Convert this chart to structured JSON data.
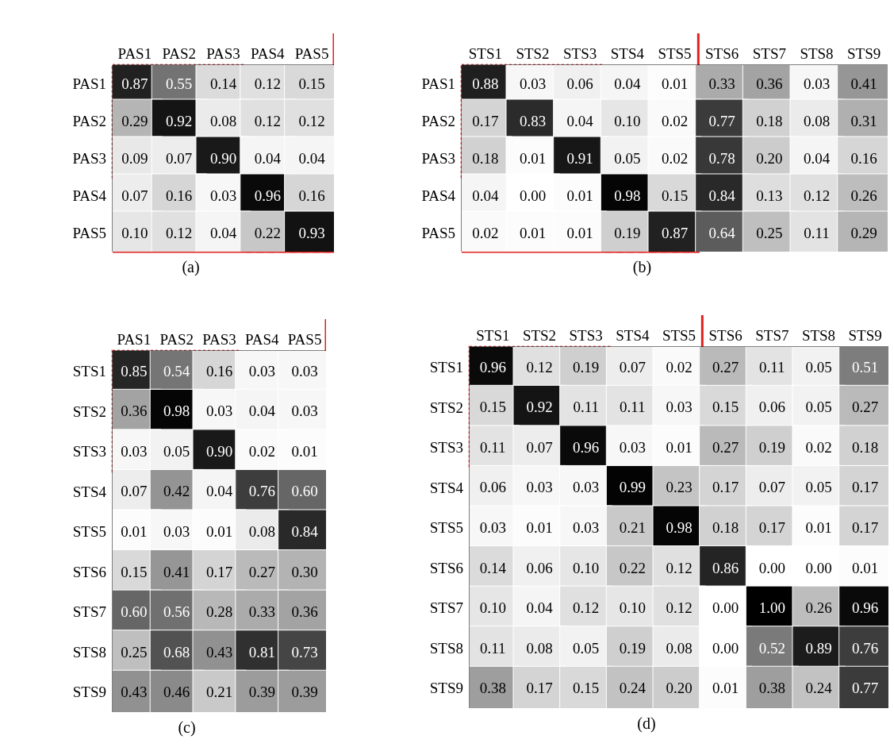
{
  "chart_data": [
    {
      "type": "heatmap",
      "title": "(a)",
      "categories": [
        "PAS1",
        "PAS2",
        "PAS3",
        "PAS4",
        "PAS5"
      ],
      "y_categories": [
        "PAS1",
        "PAS2",
        "PAS3",
        "PAS4",
        "PAS5"
      ],
      "cells": [
        [
          0.87,
          0.55,
          0.14,
          0.12,
          0.15
        ],
        [
          0.29,
          0.92,
          0.08,
          0.12,
          0.12
        ],
        [
          0.09,
          0.07,
          0.9,
          0.04,
          0.04
        ],
        [
          0.07,
          0.16,
          0.03,
          0.96,
          0.16
        ],
        [
          0.1,
          0.12,
          0.04,
          0.22,
          0.93
        ]
      ],
      "cell_labels": [
        [
          "0.87",
          "0.55",
          "0.14",
          "0.12",
          "0.15"
        ],
        [
          "0.29",
          "0.92",
          "0.08",
          "0.12",
          "0.12"
        ],
        [
          "0.09",
          "0.07",
          "0.90",
          "0.04",
          "0.04"
        ],
        [
          "0.07",
          "0.16",
          "0.03",
          "0.96",
          "0.16"
        ],
        [
          "0.10",
          "0.12",
          "0.04",
          "0.22",
          "0.93"
        ]
      ]
    },
    {
      "type": "heatmap",
      "title": "(b)",
      "categories": [
        "STS1",
        "STS2",
        "STS3",
        "STS4",
        "STS5",
        "STS6",
        "STS7",
        "STS8",
        "STS9"
      ],
      "y_categories": [
        "PAS1",
        "PAS2",
        "PAS3",
        "PAS4",
        "PAS5"
      ],
      "cells": [
        [
          0.88,
          0.03,
          0.06,
          0.04,
          0.01,
          0.33,
          0.36,
          0.03,
          0.41
        ],
        [
          0.17,
          0.83,
          0.04,
          0.1,
          0.02,
          0.77,
          0.18,
          0.08,
          0.31
        ],
        [
          0.18,
          0.01,
          0.91,
          0.05,
          0.02,
          0.78,
          0.2,
          0.04,
          0.16
        ],
        [
          0.04,
          0.0,
          0.01,
          0.98,
          0.15,
          0.84,
          0.13,
          0.12,
          0.26
        ],
        [
          0.02,
          0.01,
          0.01,
          0.19,
          0.87,
          0.64,
          0.25,
          0.11,
          0.29
        ]
      ],
      "cell_labels": [
        [
          "0.88",
          "0.03",
          "0.06",
          "0.04",
          "0.01",
          "0.33",
          "0.36",
          "0.03",
          "0.41"
        ],
        [
          "0.17",
          "0.83",
          "0.04",
          "0.10",
          "0.02",
          "0.77",
          "0.18",
          "0.08",
          "0.31"
        ],
        [
          "0.18",
          "0.01",
          "0.91",
          "0.05",
          "0.02",
          "0.78",
          "0.20",
          "0.04",
          "0.16"
        ],
        [
          "0.04",
          "0.00",
          "0.01",
          "0.98",
          "0.15",
          "0.84",
          "0.13",
          "0.12",
          "0.26"
        ],
        [
          "0.02",
          "0.01",
          "0.01",
          "0.19",
          "0.87",
          "0.64",
          "0.25",
          "0.11",
          "0.29"
        ]
      ]
    },
    {
      "type": "heatmap",
      "title": "(c)",
      "categories": [
        "PAS1",
        "PAS2",
        "PAS3",
        "PAS4",
        "PAS5"
      ],
      "y_categories": [
        "STS1",
        "STS2",
        "STS3",
        "STS4",
        "STS5",
        "STS6",
        "STS7",
        "STS8",
        "STS9"
      ],
      "cells": [
        [
          0.85,
          0.54,
          0.16,
          0.03,
          0.03
        ],
        [
          0.36,
          0.98,
          0.03,
          0.04,
          0.03
        ],
        [
          0.03,
          0.05,
          0.9,
          0.02,
          0.01
        ],
        [
          0.07,
          0.42,
          0.04,
          0.76,
          0.6
        ],
        [
          0.01,
          0.03,
          0.01,
          0.08,
          0.84
        ],
        [
          0.15,
          0.41,
          0.17,
          0.27,
          0.3
        ],
        [
          0.6,
          0.56,
          0.28,
          0.33,
          0.36
        ],
        [
          0.25,
          0.68,
          0.43,
          0.81,
          0.73
        ],
        [
          0.43,
          0.46,
          0.21,
          0.39,
          0.39
        ]
      ],
      "cell_labels": [
        [
          "0.85",
          "0.54",
          "0.16",
          "0.03",
          "0.03"
        ],
        [
          "0.36",
          "0.98",
          "0.03",
          "0.04",
          "0.03"
        ],
        [
          "0.03",
          "0.05",
          "0.90",
          "0.02",
          "0.01"
        ],
        [
          "0.07",
          "0.42",
          "0.04",
          "0.76",
          "0.60"
        ],
        [
          "0.01",
          "0.03",
          "0.01",
          "0.08",
          "0.84"
        ],
        [
          "0.15",
          "0.41",
          "0.17",
          "0.27",
          "0.30"
        ],
        [
          "0.60",
          "0.56",
          "0.28",
          "0.33",
          "0.36"
        ],
        [
          "0.25",
          "0.68",
          "0.43",
          "0.81",
          "0.73"
        ],
        [
          "0.43",
          "0.46",
          "0.21",
          "0.39",
          "0.39"
        ]
      ]
    },
    {
      "type": "heatmap",
      "title": "(d)",
      "categories": [
        "STS1",
        "STS2",
        "STS3",
        "STS4",
        "STS5",
        "STS6",
        "STS7",
        "STS8",
        "STS9"
      ],
      "y_categories": [
        "STS1",
        "STS2",
        "STS3",
        "STS4",
        "STS5",
        "STS6",
        "STS7",
        "STS8",
        "STS9"
      ],
      "cells": [
        [
          0.96,
          0.12,
          0.19,
          0.07,
          0.02,
          0.27,
          0.11,
          0.05,
          0.51
        ],
        [
          0.15,
          0.92,
          0.11,
          0.11,
          0.03,
          0.15,
          0.06,
          0.05,
          0.27
        ],
        [
          0.11,
          0.07,
          0.96,
          0.03,
          0.01,
          0.27,
          0.19,
          0.02,
          0.18
        ],
        [
          0.06,
          0.03,
          0.03,
          0.99,
          0.23,
          0.17,
          0.07,
          0.05,
          0.17
        ],
        [
          0.03,
          0.01,
          0.03,
          0.21,
          0.98,
          0.18,
          0.17,
          0.01,
          0.17
        ],
        [
          0.14,
          0.06,
          0.1,
          0.22,
          0.12,
          0.86,
          0.0,
          0.0,
          0.01
        ],
        [
          0.1,
          0.04,
          0.12,
          0.1,
          0.12,
          0.0,
          1.0,
          0.26,
          0.96
        ],
        [
          0.11,
          0.08,
          0.05,
          0.19,
          0.08,
          0.0,
          0.52,
          0.89,
          0.76
        ],
        [
          0.38,
          0.17,
          0.15,
          0.24,
          0.2,
          0.01,
          0.38,
          0.24,
          0.77
        ]
      ],
      "cell_labels": [
        [
          "0.96",
          "0.12",
          "0.19",
          "0.07",
          "0.02",
          "0.27",
          "0.11",
          "0.05",
          "0.51"
        ],
        [
          "0.15",
          "0.92",
          "0.11",
          "0.11",
          "0.03",
          "0.15",
          "0.06",
          "0.05",
          "0.27"
        ],
        [
          "0.11",
          "0.07",
          "0.96",
          "0.03",
          "0.01",
          "0.27",
          "0.19",
          "0.02",
          "0.18"
        ],
        [
          "0.06",
          "0.03",
          "0.03",
          "0.99",
          "0.23",
          "0.17",
          "0.07",
          "0.05",
          "0.17"
        ],
        [
          "0.03",
          "0.01",
          "0.03",
          "0.21",
          "0.98",
          "0.18",
          "0.17",
          "0.01",
          "0.17"
        ],
        [
          "0.14",
          "0.06",
          "0.10",
          "0.22",
          "0.12",
          "0.86",
          "0.00",
          "0.00",
          "0.01"
        ],
        [
          "0.10",
          "0.04",
          "0.12",
          "0.10",
          "0.12",
          "0.00",
          "1.00",
          "0.26",
          "0.96"
        ],
        [
          "0.11",
          "0.08",
          "0.05",
          "0.19",
          "0.08",
          "0.00",
          "0.52",
          "0.89",
          "0.76"
        ],
        [
          "0.38",
          "0.17",
          "0.15",
          "0.24",
          "0.20",
          "0.01",
          "0.38",
          "0.24",
          "0.77"
        ]
      ]
    }
  ]
}
